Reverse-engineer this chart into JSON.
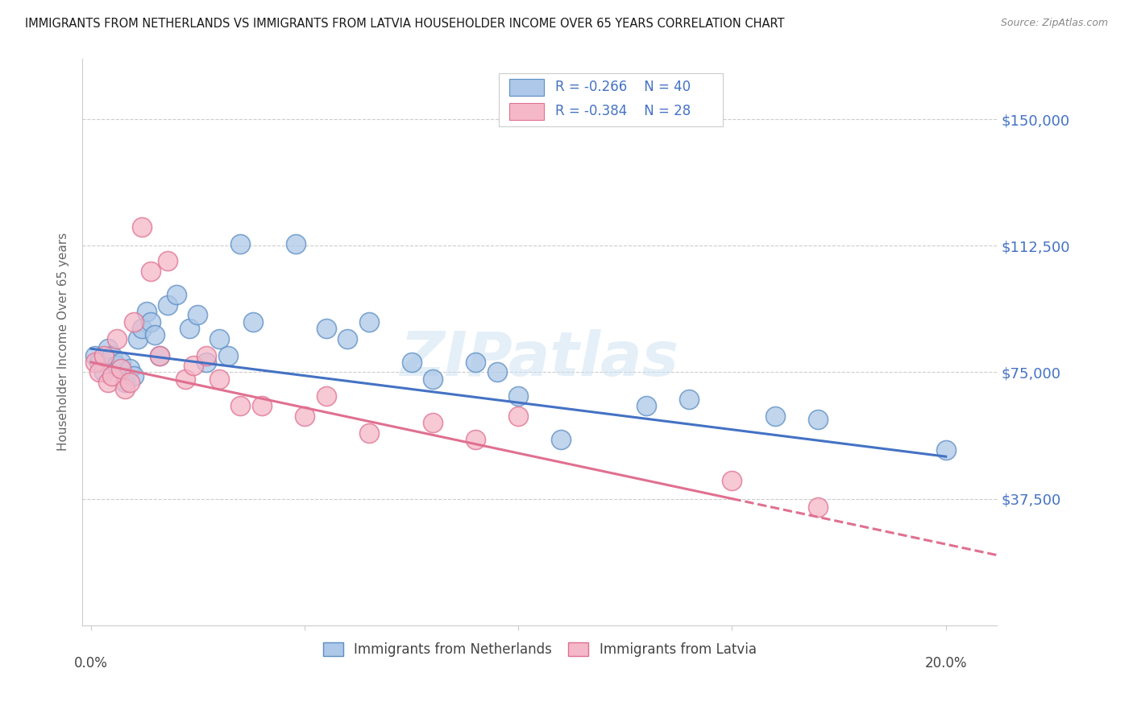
{
  "title": "IMMIGRANTS FROM NETHERLANDS VS IMMIGRANTS FROM LATVIA HOUSEHOLDER INCOME OVER 65 YEARS CORRELATION CHART",
  "source": "Source: ZipAtlas.com",
  "ylabel": "Householder Income Over 65 years",
  "watermark": "ZIPatlas",
  "legend1_label": "Immigrants from Netherlands",
  "legend2_label": "Immigrants from Latvia",
  "r1": "-0.266",
  "n1": "40",
  "r2": "-0.384",
  "n2": "28",
  "color_netherlands": "#adc8e8",
  "color_latvia": "#f5b8c8",
  "color_netherlands_dark": "#5b8ec4",
  "color_latvia_dark": "#e07090",
  "color_line_netherlands": "#4472c4",
  "color_line_latvia": "#e07090",
  "ytick_labels": [
    "$37,500",
    "$75,000",
    "$112,500",
    "$150,000"
  ],
  "ytick_values": [
    37500,
    75000,
    112500,
    150000
  ],
  "ylim": [
    0,
    168000
  ],
  "xlim": [
    -0.002,
    0.212
  ],
  "line_nl_x0": 0.0,
  "line_nl_y0": 82000,
  "line_nl_x1": 0.2,
  "line_nl_y1": 50000,
  "line_lv_x0": 0.0,
  "line_lv_y0": 78000,
  "line_lv_x1": 0.15,
  "line_lv_y1": 37500,
  "line_lv_dash_x0": 0.15,
  "line_lv_dash_x1": 0.212,
  "netherlands_x": [
    0.001,
    0.002,
    0.003,
    0.004,
    0.005,
    0.006,
    0.007,
    0.008,
    0.009,
    0.01,
    0.011,
    0.012,
    0.013,
    0.014,
    0.015,
    0.016,
    0.018,
    0.02,
    0.023,
    0.025,
    0.027,
    0.03,
    0.032,
    0.035,
    0.038,
    0.048,
    0.055,
    0.06,
    0.065,
    0.075,
    0.08,
    0.09,
    0.095,
    0.1,
    0.11,
    0.13,
    0.14,
    0.16,
    0.17,
    0.2
  ],
  "netherlands_y": [
    80000,
    78000,
    75000,
    82000,
    80000,
    77000,
    78000,
    72000,
    76000,
    74000,
    85000,
    88000,
    93000,
    90000,
    86000,
    80000,
    95000,
    98000,
    88000,
    92000,
    78000,
    85000,
    80000,
    113000,
    90000,
    113000,
    88000,
    85000,
    90000,
    78000,
    73000,
    78000,
    75000,
    68000,
    55000,
    65000,
    67000,
    62000,
    61000,
    52000
  ],
  "latvia_x": [
    0.001,
    0.002,
    0.003,
    0.004,
    0.005,
    0.006,
    0.007,
    0.008,
    0.009,
    0.01,
    0.012,
    0.014,
    0.016,
    0.018,
    0.022,
    0.024,
    0.027,
    0.03,
    0.035,
    0.04,
    0.05,
    0.055,
    0.065,
    0.08,
    0.09,
    0.1,
    0.15,
    0.17
  ],
  "latvia_y": [
    78000,
    75000,
    80000,
    72000,
    74000,
    85000,
    76000,
    70000,
    72000,
    90000,
    118000,
    105000,
    80000,
    108000,
    73000,
    77000,
    80000,
    73000,
    65000,
    65000,
    62000,
    68000,
    57000,
    60000,
    55000,
    62000,
    43000,
    35000
  ]
}
